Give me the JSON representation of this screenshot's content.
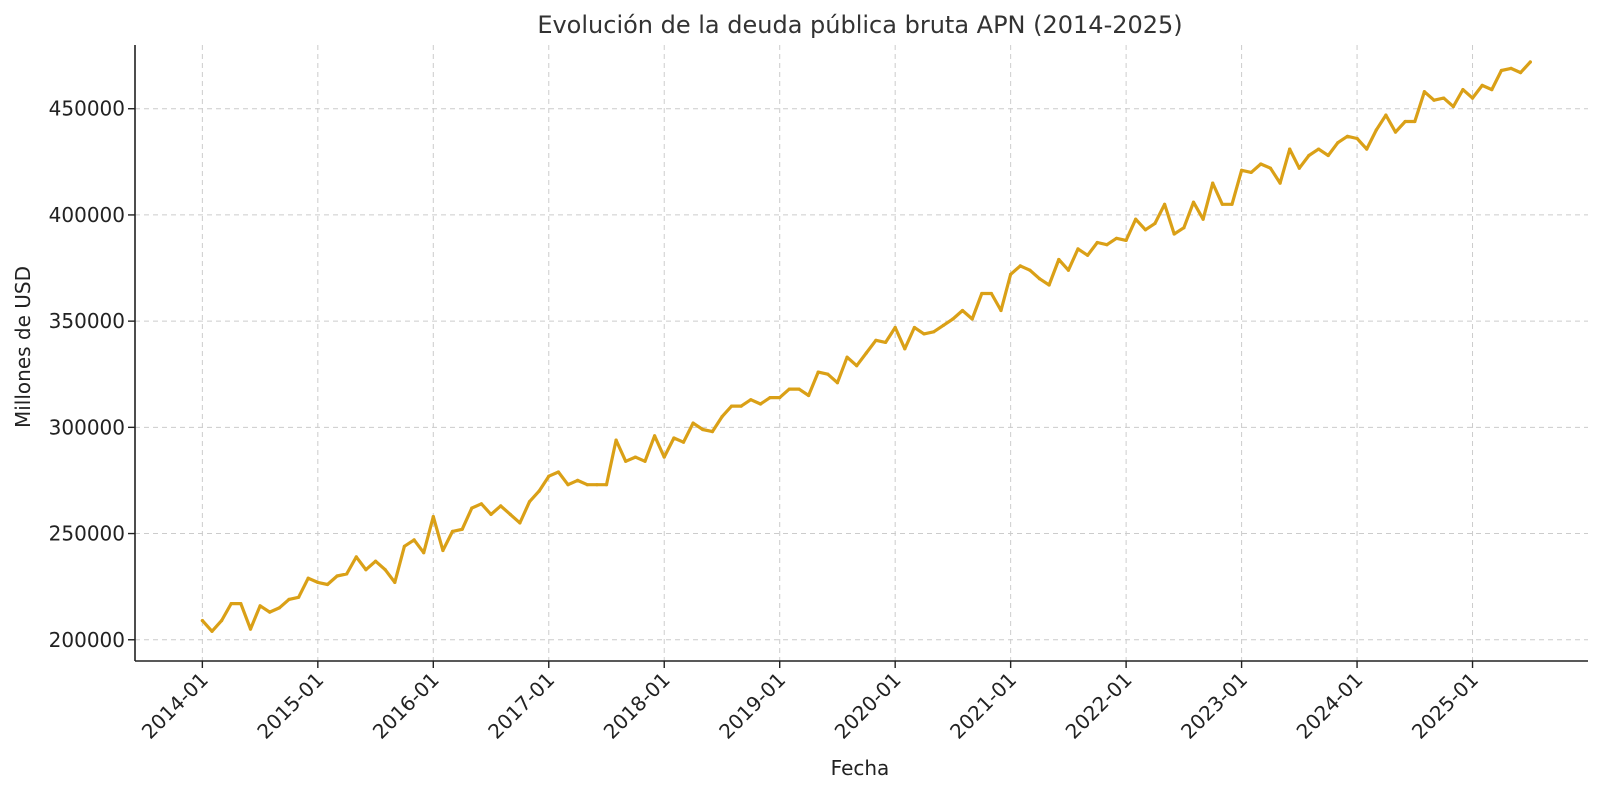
{
  "colors": {
    "series": "#DAA017",
    "grid": "#cccccc",
    "axis": "#222222",
    "title": "#333333"
  },
  "chart_data": {
    "type": "line",
    "title": "Evolución de la deuda pública bruta APN (2014-2025)",
    "xlabel": "Fecha",
    "ylabel": "Millones de USD",
    "grid": true,
    "ylim": [
      190000,
      480000
    ],
    "xlim": [
      "2013-06",
      "2026-01"
    ],
    "x_tick_labels": [
      "2014-01",
      "2015-01",
      "2016-01",
      "2017-01",
      "2018-01",
      "2019-01",
      "2020-01",
      "2021-01",
      "2022-01",
      "2023-01",
      "2024-01",
      "2025-01"
    ],
    "y_ticks": [
      200000,
      250000,
      300000,
      350000,
      400000,
      450000
    ],
    "y_tick_labels": [
      "200000",
      "250000",
      "300000",
      "350000",
      "400000",
      "450000"
    ],
    "series": [
      {
        "color": "#DAA017",
        "x": [
          "2014-01",
          "2014-02",
          "2014-03",
          "2014-04",
          "2014-05",
          "2014-06",
          "2014-07",
          "2014-08",
          "2014-09",
          "2014-10",
          "2014-11",
          "2014-12",
          "2015-01",
          "2015-02",
          "2015-03",
          "2015-04",
          "2015-05",
          "2015-06",
          "2015-07",
          "2015-08",
          "2015-09",
          "2015-10",
          "2015-11",
          "2015-12",
          "2016-01",
          "2016-02",
          "2016-03",
          "2016-04",
          "2016-05",
          "2016-06",
          "2016-07",
          "2016-08",
          "2016-09",
          "2016-10",
          "2016-11",
          "2016-12",
          "2017-01",
          "2017-02",
          "2017-03",
          "2017-04",
          "2017-05",
          "2017-06",
          "2017-07",
          "2017-08",
          "2017-09",
          "2017-10",
          "2017-11",
          "2017-12",
          "2018-01",
          "2018-02",
          "2018-03",
          "2018-04",
          "2018-05",
          "2018-06",
          "2018-07",
          "2018-08",
          "2018-09",
          "2018-10",
          "2018-11",
          "2018-12",
          "2019-01",
          "2019-02",
          "2019-03",
          "2019-04",
          "2019-05",
          "2019-06",
          "2019-07",
          "2019-08",
          "2019-09",
          "2019-10",
          "2019-11",
          "2019-12",
          "2020-01",
          "2020-02",
          "2020-03",
          "2020-04",
          "2020-05",
          "2020-06",
          "2020-07",
          "2020-08",
          "2020-09",
          "2020-10",
          "2020-11",
          "2020-12",
          "2021-01",
          "2021-02",
          "2021-03",
          "2021-04",
          "2021-05",
          "2021-06",
          "2021-07",
          "2021-08",
          "2021-09",
          "2021-10",
          "2021-11",
          "2021-12",
          "2022-01",
          "2022-02",
          "2022-03",
          "2022-04",
          "2022-05",
          "2022-06",
          "2022-07",
          "2022-08",
          "2022-09",
          "2022-10",
          "2022-11",
          "2022-12",
          "2023-01",
          "2023-02",
          "2023-03",
          "2023-04",
          "2023-05",
          "2023-06",
          "2023-07",
          "2023-08",
          "2023-09",
          "2023-10",
          "2023-11",
          "2023-12",
          "2024-01",
          "2024-02",
          "2024-03",
          "2024-04",
          "2024-05",
          "2024-06",
          "2024-07",
          "2024-08",
          "2024-09",
          "2024-10",
          "2024-11",
          "2024-12",
          "2025-01",
          "2025-02",
          "2025-03",
          "2025-04",
          "2025-05",
          "2025-06",
          "2025-07"
        ],
        "values": [
          209000,
          204000,
          209000,
          217000,
          217000,
          205000,
          216000,
          213000,
          215000,
          219000,
          220000,
          229000,
          227000,
          226000,
          230000,
          231000,
          239000,
          233000,
          237000,
          233000,
          227000,
          244000,
          247000,
          241000,
          258000,
          242000,
          251000,
          252000,
          262000,
          264000,
          259000,
          263000,
          259000,
          255000,
          265000,
          270000,
          277000,
          279000,
          273000,
          275000,
          273000,
          273000,
          273000,
          294000,
          284000,
          286000,
          284000,
          296000,
          286000,
          295000,
          293000,
          302000,
          299000,
          298000,
          305000,
          310000,
          310000,
          313000,
          311000,
          314000,
          314000,
          318000,
          318000,
          315000,
          326000,
          325000,
          321000,
          333000,
          329000,
          335000,
          341000,
          340000,
          347000,
          337000,
          347000,
          344000,
          345000,
          348000,
          351000,
          355000,
          351000,
          363000,
          363000,
          355000,
          372000,
          376000,
          374000,
          370000,
          367000,
          379000,
          374000,
          384000,
          381000,
          387000,
          386000,
          389000,
          388000,
          398000,
          393000,
          396000,
          405000,
          391000,
          394000,
          406000,
          398000,
          415000,
          405000,
          405000,
          421000,
          420000,
          424000,
          422000,
          415000,
          431000,
          422000,
          428000,
          431000,
          428000,
          434000,
          437000,
          436000,
          431000,
          440000,
          447000,
          439000,
          444000,
          444000,
          458000,
          454000,
          455000,
          451000,
          459000,
          455000,
          461000,
          459000,
          468000,
          469000,
          467000,
          472000
        ]
      }
    ]
  }
}
